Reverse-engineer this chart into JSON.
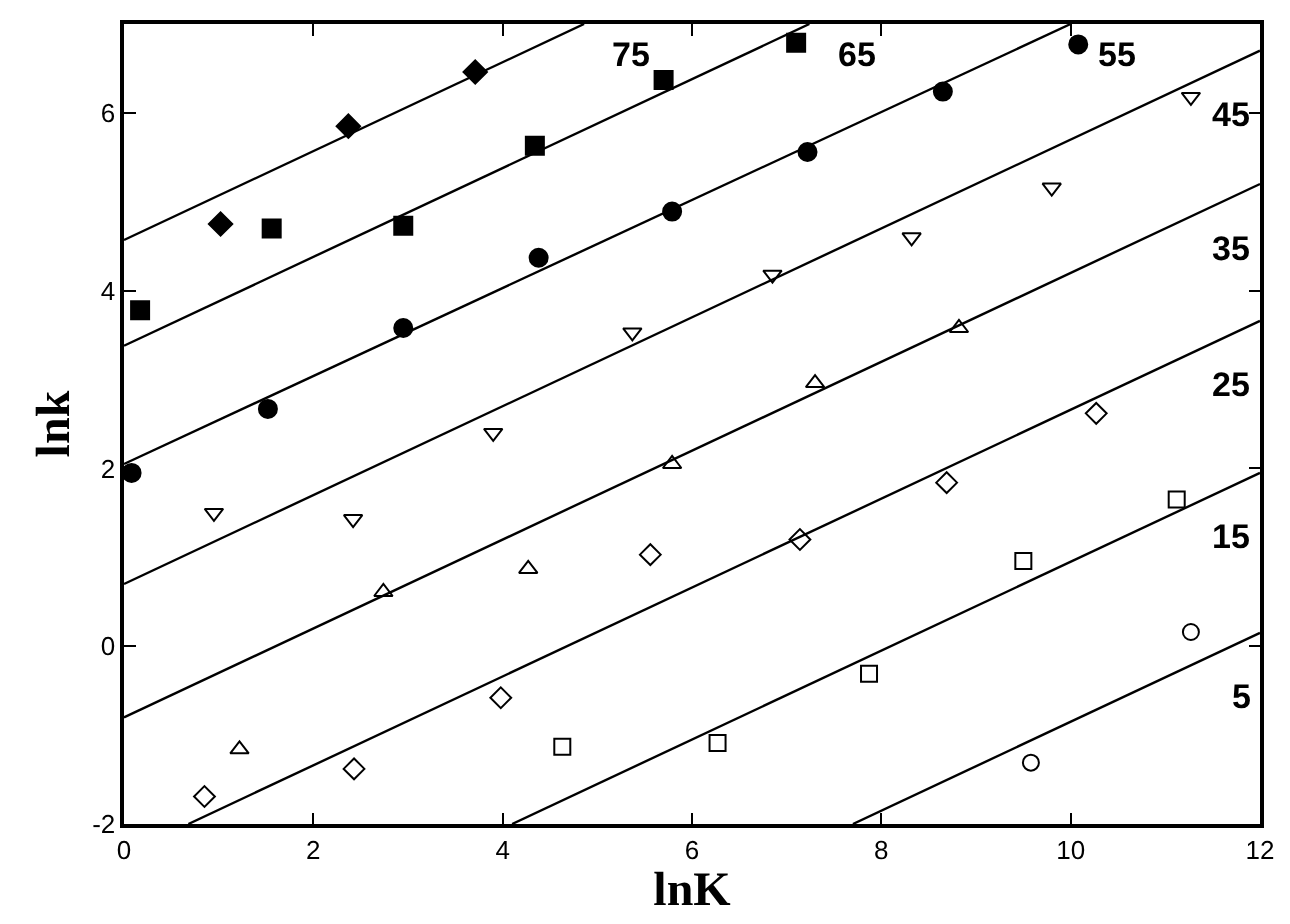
{
  "chart_data": {
    "type": "scatter",
    "xlabel": "lnK",
    "ylabel": "lnk",
    "xlim": [
      0,
      12
    ],
    "ylim": [
      -2,
      7
    ],
    "xticks": [
      0,
      2,
      4,
      6,
      8,
      10,
      12
    ],
    "yticks": [
      -2,
      0,
      2,
      4,
      6
    ],
    "legend": "right",
    "series": [
      {
        "type": "line",
        "name": "75",
        "color": "#000000",
        "marker": "none",
        "line_style": "solid",
        "x": [
          0,
          4.86
        ],
        "values": [
          4.57,
          7
        ]
      },
      {
        "type": "line",
        "name": "65",
        "color": "#000000",
        "marker": "none",
        "line_style": "solid",
        "x": [
          0,
          7.24
        ],
        "values": [
          3.38,
          7
        ]
      },
      {
        "type": "line",
        "name": "55",
        "color": "#000000",
        "marker": "none",
        "line_style": "solid",
        "x": [
          0,
          10
        ],
        "values": [
          2.05,
          7
        ]
      },
      {
        "type": "line",
        "name": "45",
        "color": "#000000",
        "marker": "none",
        "line_style": "solid",
        "x": [
          0,
          12
        ],
        "values": [
          0.7,
          6.7
        ]
      },
      {
        "type": "line",
        "name": "35",
        "color": "#000000",
        "marker": "none",
        "line_style": "solid",
        "x": [
          0,
          12
        ],
        "values": [
          -0.8,
          5.2
        ]
      },
      {
        "type": "line",
        "name": "25",
        "color": "#000000",
        "marker": "none",
        "line_style": "solid",
        "x": [
          0.68,
          12
        ],
        "values": [
          -2,
          3.66
        ]
      },
      {
        "type": "line",
        "name": "15",
        "color": "#000000",
        "marker": "none",
        "line_style": "solid",
        "x": [
          4.1,
          12
        ],
        "values": [
          -2,
          1.95
        ]
      },
      {
        "type": "line",
        "name": "5",
        "color": "#000000",
        "marker": "none",
        "line_style": "solid",
        "x": [
          7.7,
          12
        ],
        "values": [
          -2,
          0.15
        ]
      },
      {
        "color": "#000000",
        "marker": "diamond",
        "x": [
          1.02,
          2.37,
          3.71
        ],
        "values": [
          4.75,
          5.85,
          6.46
        ]
      },
      {
        "color": "#000000",
        "marker": "square",
        "x": [
          0.17,
          1.56,
          2.95,
          4.34,
          5.7,
          7.1
        ],
        "values": [
          3.78,
          4.7,
          4.73,
          5.63,
          6.37,
          6.79
        ]
      },
      {
        "color": "#000000",
        "marker": "circle",
        "x": [
          0.08,
          1.52,
          2.95,
          4.38,
          5.79,
          7.22,
          8.65,
          10.08
        ],
        "values": [
          1.95,
          2.67,
          3.58,
          4.37,
          4.89,
          5.56,
          6.24,
          6.77
        ]
      },
      {
        "color": "#000000",
        "marker": "triangle-down-open",
        "x": [
          0.95,
          2.42,
          3.9,
          5.37,
          6.85,
          8.32,
          9.8,
          11.27
        ],
        "values": [
          1.5,
          1.43,
          2.4,
          3.53,
          4.18,
          4.6,
          5.16,
          6.18
        ]
      },
      {
        "color": "#000000",
        "marker": "triangle-up-open",
        "x": [
          1.22,
          2.74,
          4.27,
          5.79,
          7.3,
          8.82
        ],
        "values": [
          -1.16,
          0.61,
          0.87,
          2.05,
          2.96,
          3.58
        ]
      },
      {
        "color": "#000000",
        "marker": "diamond-open",
        "x": [
          0.85,
          2.43,
          3.98,
          5.56,
          7.14,
          8.69,
          10.27
        ],
        "values": [
          -1.69,
          -1.38,
          -0.58,
          1.03,
          1.2,
          1.84,
          2.62
        ]
      },
      {
        "color": "#000000",
        "marker": "square-open",
        "x": [
          4.63,
          6.27,
          7.87,
          9.5,
          11.12
        ],
        "values": [
          -1.13,
          -1.09,
          -0.31,
          0.96,
          1.65
        ]
      },
      {
        "color": "#000000",
        "marker": "circle-open",
        "x": [
          9.58,
          11.27
        ],
        "values": [
          -1.31,
          0.16
        ]
      }
    ]
  }
}
